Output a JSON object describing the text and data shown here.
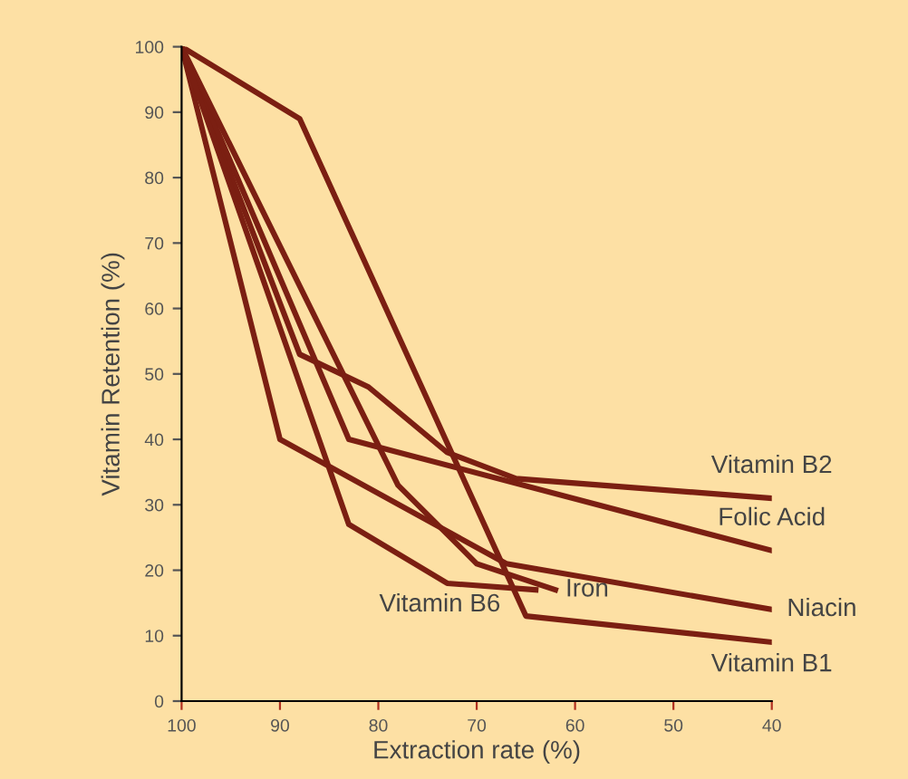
{
  "chart_data": {
    "type": "line",
    "xlabel": "Extraction rate (%)",
    "ylabel": "Vitamin Retention (%)",
    "xlim": [
      100,
      40
    ],
    "xticks": [
      100,
      90,
      80,
      70,
      60,
      50,
      40
    ],
    "ylim": [
      0,
      100
    ],
    "yticks": [
      0,
      10,
      20,
      30,
      40,
      50,
      60,
      70,
      80,
      90,
      100
    ],
    "grid": false,
    "legend": false,
    "marker": "none",
    "line_style": "solid",
    "series": [
      {
        "name": "Vitamin B2",
        "color": "#7b1f12",
        "x": [
          100,
          88,
          81,
          73,
          66,
          40
        ],
        "values": [
          100,
          53,
          48,
          38,
          34,
          31
        ]
      },
      {
        "name": "Folic Acid",
        "color": "#7b1f12",
        "x": [
          100,
          83,
          40
        ],
        "values": [
          100,
          40,
          23
        ]
      },
      {
        "name": "Niacin",
        "color": "#7b1f12",
        "x": [
          100,
          90,
          67,
          40
        ],
        "values": [
          100,
          40,
          21,
          14
        ]
      },
      {
        "name": "Iron",
        "color": "#7b1f12",
        "x": [
          100,
          78,
          70,
          62
        ],
        "values": [
          100,
          33,
          21,
          17
        ]
      },
      {
        "name": "Vitamin B6",
        "color": "#7b1f12",
        "x": [
          100,
          83,
          73,
          64
        ],
        "values": [
          100,
          27,
          18,
          17
        ]
      },
      {
        "name": "Vitamin B1",
        "color": "#7b1f12",
        "x": [
          100,
          88,
          65,
          40
        ],
        "values": [
          100,
          89,
          13,
          9
        ]
      }
    ]
  }
}
